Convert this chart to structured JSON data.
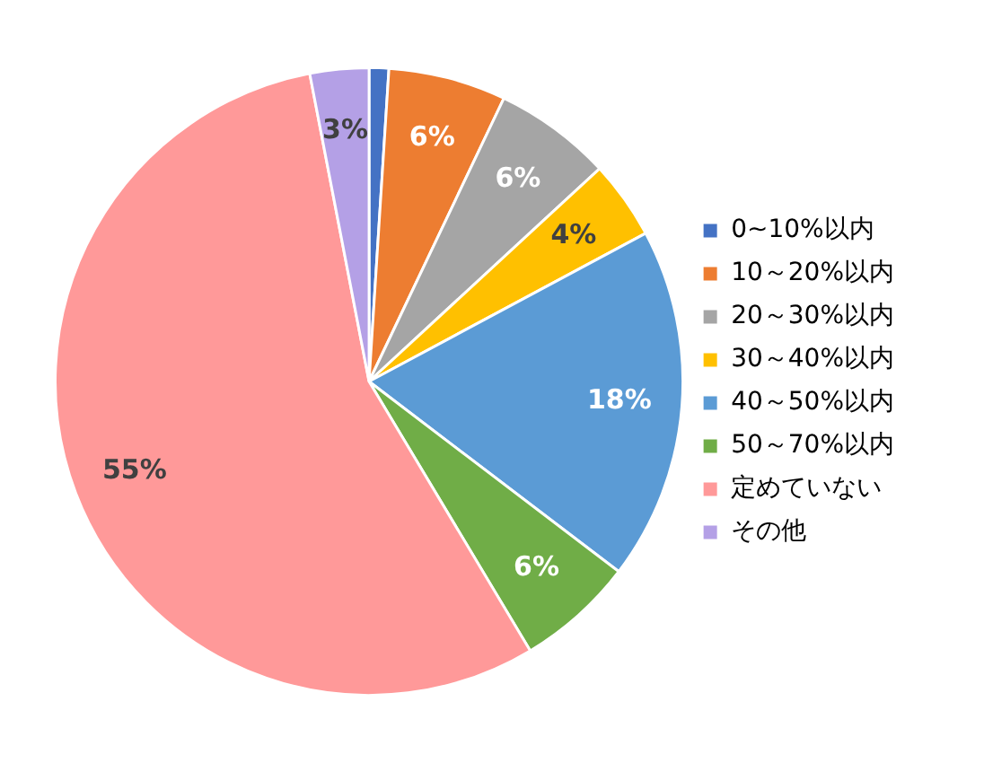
{
  "chart_data": {
    "type": "pie",
    "categories": [
      "0~10%以内",
      "10～20%以内",
      "20～30%以内",
      "30～40%以内",
      "40～50%以内",
      "50～70%以内",
      "定めていない",
      "その他"
    ],
    "values": [
      1,
      6,
      6,
      4,
      18,
      6,
      55,
      3
    ],
    "colors": [
      "#4472c4",
      "#ed7d31",
      "#a5a5a5",
      "#ffc000",
      "#5b9bd5",
      "#70ad47",
      "#ff9999",
      "#b4a0e6"
    ],
    "value_labels": [
      null,
      "6%",
      "6%",
      "4%",
      "18%",
      "6%",
      "55%",
      "3%"
    ],
    "legend": "right"
  }
}
